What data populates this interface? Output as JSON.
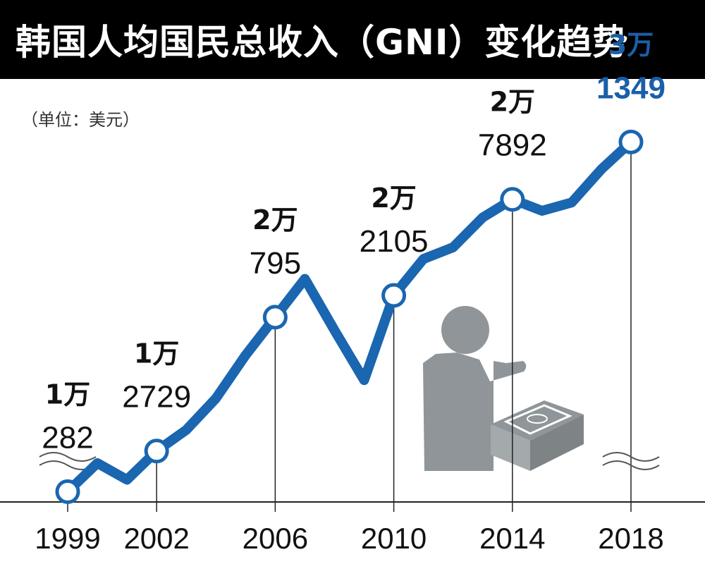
{
  "title": "韩国人均国民总收入（GNI）变化趋势",
  "unit_note": "（单位：美元）",
  "colors": {
    "line": "#1a66b0",
    "highlight_label": "#1a5fa8",
    "label": "#111111",
    "axis": "#222222",
    "icon_gray": "#8f9598",
    "title_bg": "#000000"
  },
  "icon": "businessman-pointing-at-cash-stack-icon",
  "chart_data": {
    "type": "line",
    "title": "韩国人均国民总收入（GNI）变化趋势",
    "unit": "（单位：美元）",
    "xlabel": "",
    "ylabel": "",
    "y_axis_visible": false,
    "grid": false,
    "xlim": [
      1999,
      2018
    ],
    "ylim": [
      10000,
      32000
    ],
    "x_ticks": [
      "1999",
      "2002",
      "2006",
      "2010",
      "2014",
      "2018"
    ],
    "series": [
      {
        "name": "",
        "x": [
          1999,
          2000,
          2001,
          2002,
          2003,
          2004,
          2005,
          2006,
          2007,
          2008,
          2009,
          2010,
          2011,
          2012,
          2013,
          2014,
          2015,
          2016,
          2017,
          2018
        ],
        "y": [
          10282,
          12000,
          11000,
          12729,
          14000,
          15900,
          18500,
          20795,
          23100,
          20000,
          17000,
          22105,
          24300,
          25000,
          26800,
          27892,
          27200,
          27700,
          29700,
          31349
        ]
      }
    ],
    "labeled_points": [
      {
        "x": 1999,
        "y": 10282,
        "line1": "1万",
        "line2": "282",
        "highlight": false
      },
      {
        "x": 2002,
        "y": 12729,
        "line1": "1万",
        "line2": "2729",
        "highlight": false
      },
      {
        "x": 2006,
        "y": 20795,
        "line1": "2万",
        "line2": "795",
        "highlight": false
      },
      {
        "x": 2010,
        "y": 22105,
        "line1": "2万",
        "line2": "2105",
        "highlight": false
      },
      {
        "x": 2014,
        "y": 27892,
        "line1": "2万",
        "line2": "7892",
        "highlight": false
      },
      {
        "x": 2018,
        "y": 31349,
        "line1": "3万",
        "line2": "1349",
        "highlight": true
      }
    ],
    "axis_break": true
  }
}
